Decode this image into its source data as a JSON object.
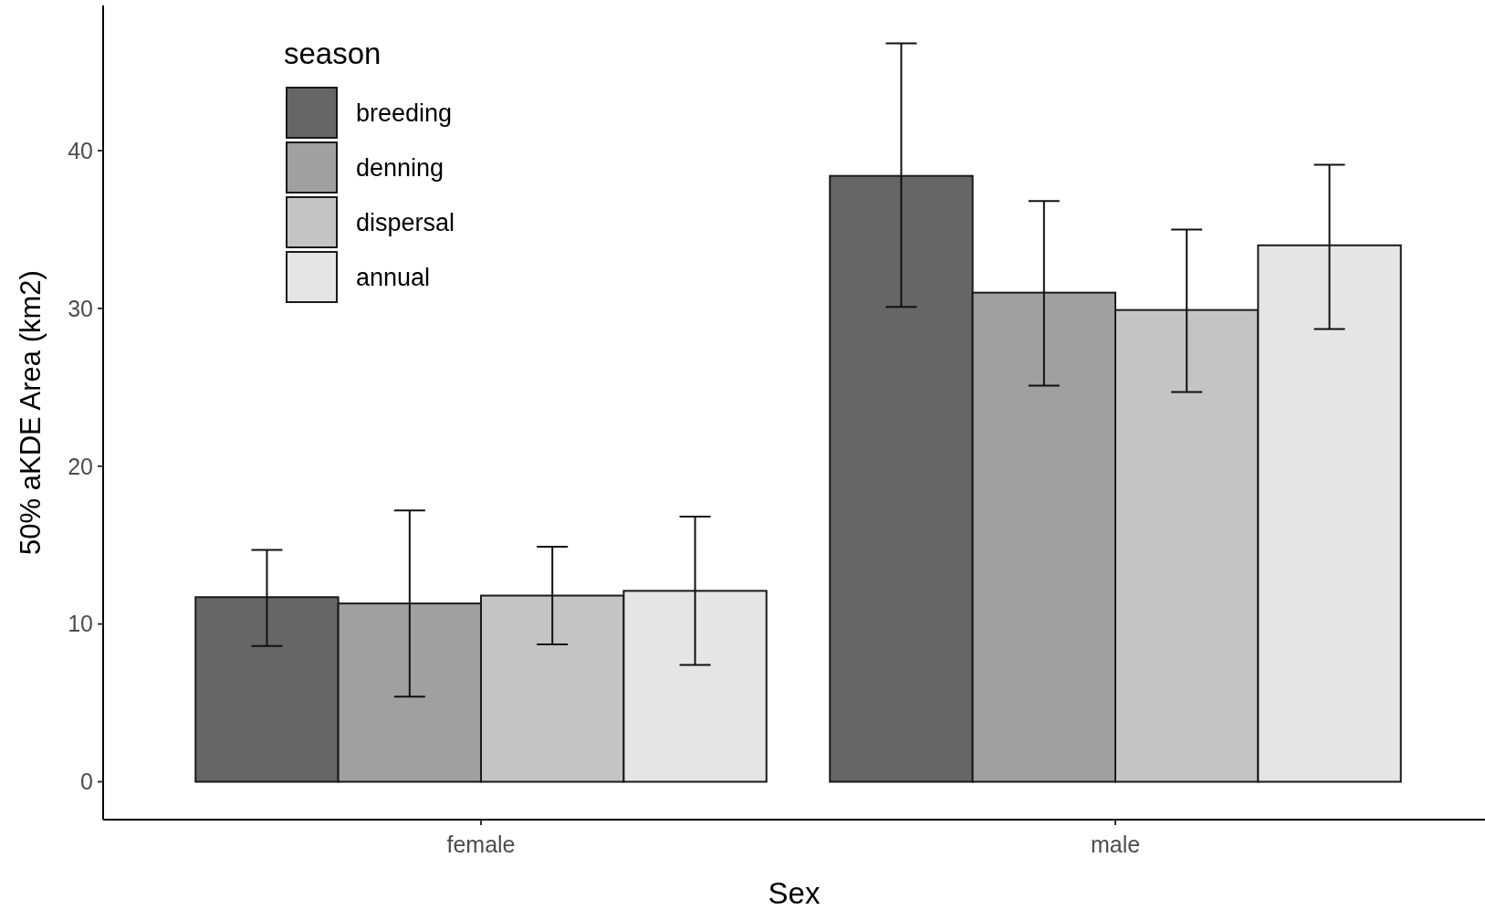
{
  "chart_data": {
    "type": "bar",
    "xlabel": "Sex",
    "ylabel": "50% aKDE Area (km2)",
    "legend_title": "season",
    "legend": "top left",
    "categories": [
      "female",
      "male"
    ],
    "series": [
      {
        "name": "breeding",
        "color": "#666666",
        "values": [
          11.7,
          38.4
        ],
        "errors": [
          [
            8.6,
            14.7
          ],
          [
            30.1,
            46.8
          ]
        ]
      },
      {
        "name": "denning",
        "color": "#a0a0a0",
        "values": [
          11.3,
          31.0
        ],
        "errors": [
          [
            5.4,
            17.2
          ],
          [
            25.1,
            36.8
          ]
        ]
      },
      {
        "name": "dispersal",
        "color": "#c4c4c4",
        "values": [
          11.8,
          29.9
        ],
        "errors": [
          [
            8.7,
            14.9
          ],
          [
            24.7,
            35.0
          ]
        ]
      },
      {
        "name": "annual",
        "color": "#e5e5e5",
        "values": [
          12.1,
          34.0
        ],
        "errors": [
          [
            7.4,
            16.8
          ],
          [
            28.7,
            39.1
          ]
        ]
      }
    ],
    "ylim": [
      -2.4,
      49.2
    ],
    "yticks": [
      0,
      10,
      20,
      30,
      40
    ],
    "grid": false
  }
}
